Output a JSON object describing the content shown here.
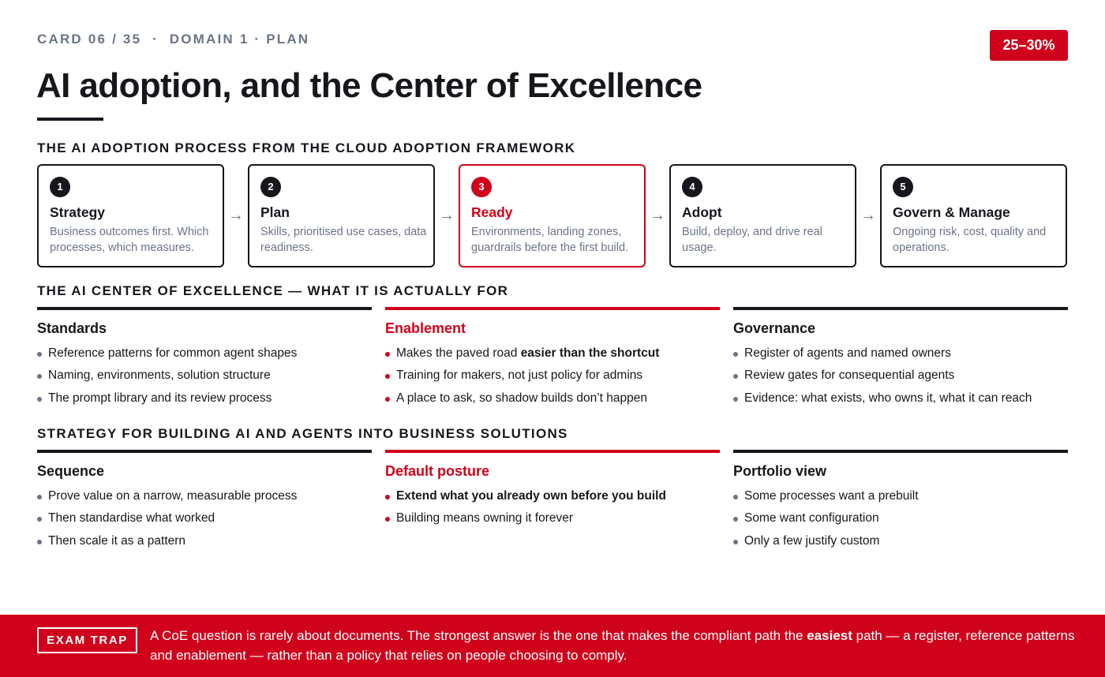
{
  "header": {
    "meta": "CARD 06 / 35  ·  DOMAIN 1 · PLAN",
    "badge": "25–30%",
    "title": "AI adoption, and the Center of Excellence"
  },
  "process": {
    "heading": "THE AI ADOPTION PROCESS FROM THE CLOUD ADOPTION FRAMEWORK",
    "arrow": "→",
    "steps": [
      {
        "num": "1",
        "title": "Strategy",
        "desc": "Business outcomes first. Which processes, which measures."
      },
      {
        "num": "2",
        "title": "Plan",
        "desc": "Skills, prioritised use cases, data readiness."
      },
      {
        "num": "3",
        "title": "Ready",
        "desc": "Environments, landing zones, guardrails before the first build."
      },
      {
        "num": "4",
        "title": "Adopt",
        "desc": "Build, deploy, and drive real usage."
      },
      {
        "num": "5",
        "title": "Govern & Manage",
        "desc": "Ongoing risk, cost, quality and operations."
      }
    ]
  },
  "coe": {
    "heading": "THE AI CENTER OF EXCELLENCE — WHAT IT IS ACTUALLY FOR",
    "columns": [
      {
        "title": "Standards",
        "items": [
          "Reference patterns for common agent shapes",
          "Naming, environments, solution structure",
          "The prompt library and its review process"
        ]
      },
      {
        "title": "Enablement",
        "items": [
          {
            "pre": "Makes the paved road ",
            "bold": "easier than the shortcut"
          },
          "Training for makers, not just policy for admins",
          "A place to ask, so shadow builds don’t happen"
        ]
      },
      {
        "title": "Governance",
        "items": [
          "Register of agents and named owners",
          "Review gates for consequential agents",
          "Evidence: what exists, who owns it, what it can reach"
        ]
      }
    ]
  },
  "strategy": {
    "heading": "STRATEGY FOR BUILDING AI AND AGENTS INTO BUSINESS SOLUTIONS",
    "columns": [
      {
        "title": "Sequence",
        "items": [
          "Prove value on a narrow, measurable process",
          "Then standardise what worked",
          "Then scale it as a pattern"
        ]
      },
      {
        "title": "Default posture",
        "items": [
          "Extend what you already own before you build",
          "Building means owning it forever"
        ]
      },
      {
        "title": "Portfolio view",
        "items": [
          "Some processes want a prebuilt",
          "Some want configuration",
          "Only a few justify custom"
        ]
      }
    ]
  },
  "footer": {
    "label": "EXAM TRAP",
    "text_pre": "A CoE question is rarely about documents. The strongest answer is the one that makes the compliant path the ",
    "text_bold": "easiest",
    "text_post": " path — a register, reference patterns and enablement — rather than a policy that relies on people choosing to comply."
  },
  "colors": {
    "accent": "#d0021b",
    "ink": "#15171c",
    "muted": "#6b7485"
  }
}
